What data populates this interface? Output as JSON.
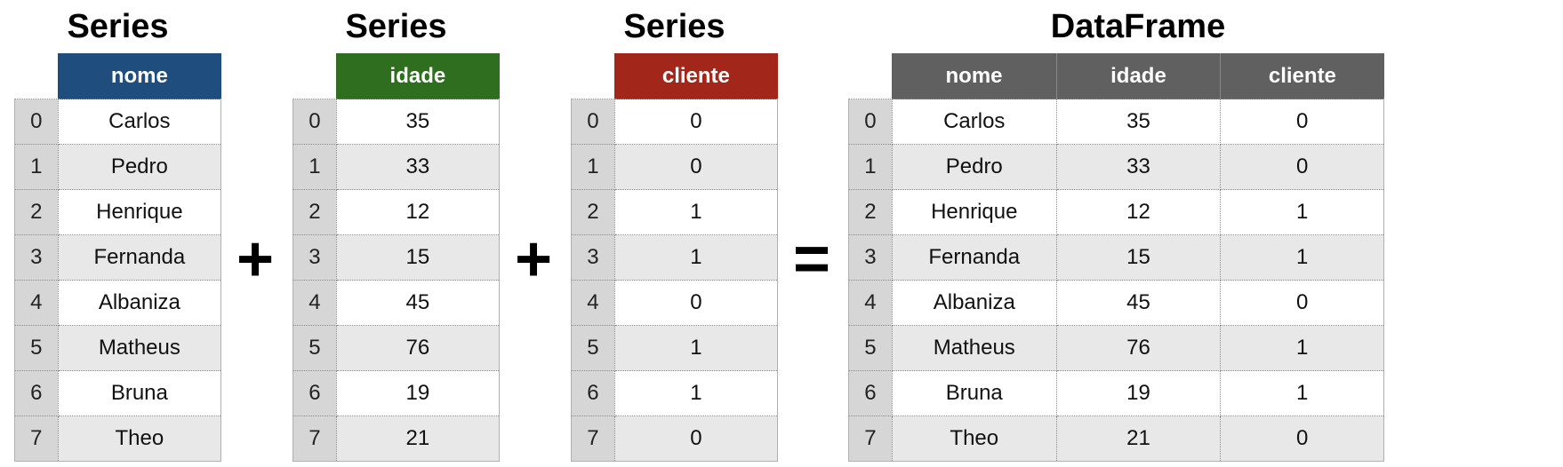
{
  "colors": {
    "nome_header": "#1f4e7e",
    "idade_header": "#2e6e1e",
    "cliente_header": "#a2271a",
    "dataframe_header": "#606060",
    "index_cell": "#d6d6d6",
    "row_shade": "#e8e8e8"
  },
  "operators": {
    "plus_1": "+",
    "plus_2": "+",
    "equals": "="
  },
  "series_nome": {
    "title": "Series",
    "column": "nome",
    "index": [
      "0",
      "1",
      "2",
      "3",
      "4",
      "5",
      "6",
      "7"
    ],
    "values": [
      "Carlos",
      "Pedro",
      "Henrique",
      "Fernanda",
      "Albaniza",
      "Matheus",
      "Bruna",
      "Theo"
    ]
  },
  "series_idade": {
    "title": "Series",
    "column": "idade",
    "index": [
      "0",
      "1",
      "2",
      "3",
      "4",
      "5",
      "6",
      "7"
    ],
    "values": [
      "35",
      "33",
      "12",
      "15",
      "45",
      "76",
      "19",
      "21"
    ]
  },
  "series_cliente": {
    "title": "Series",
    "column": "cliente",
    "index": [
      "0",
      "1",
      "2",
      "3",
      "4",
      "5",
      "6",
      "7"
    ],
    "values": [
      "0",
      "0",
      "1",
      "1",
      "0",
      "1",
      "1",
      "0"
    ]
  },
  "dataframe": {
    "title": "DataFrame",
    "columns": [
      "nome",
      "idade",
      "cliente"
    ],
    "index": [
      "0",
      "1",
      "2",
      "3",
      "4",
      "5",
      "6",
      "7"
    ],
    "rows": [
      [
        "Carlos",
        "35",
        "0"
      ],
      [
        "Pedro",
        "33",
        "0"
      ],
      [
        "Henrique",
        "12",
        "1"
      ],
      [
        "Fernanda",
        "15",
        "1"
      ],
      [
        "Albaniza",
        "45",
        "0"
      ],
      [
        "Matheus",
        "76",
        "1"
      ],
      [
        "Bruna",
        "19",
        "1"
      ],
      [
        "Theo",
        "21",
        "0"
      ]
    ]
  }
}
